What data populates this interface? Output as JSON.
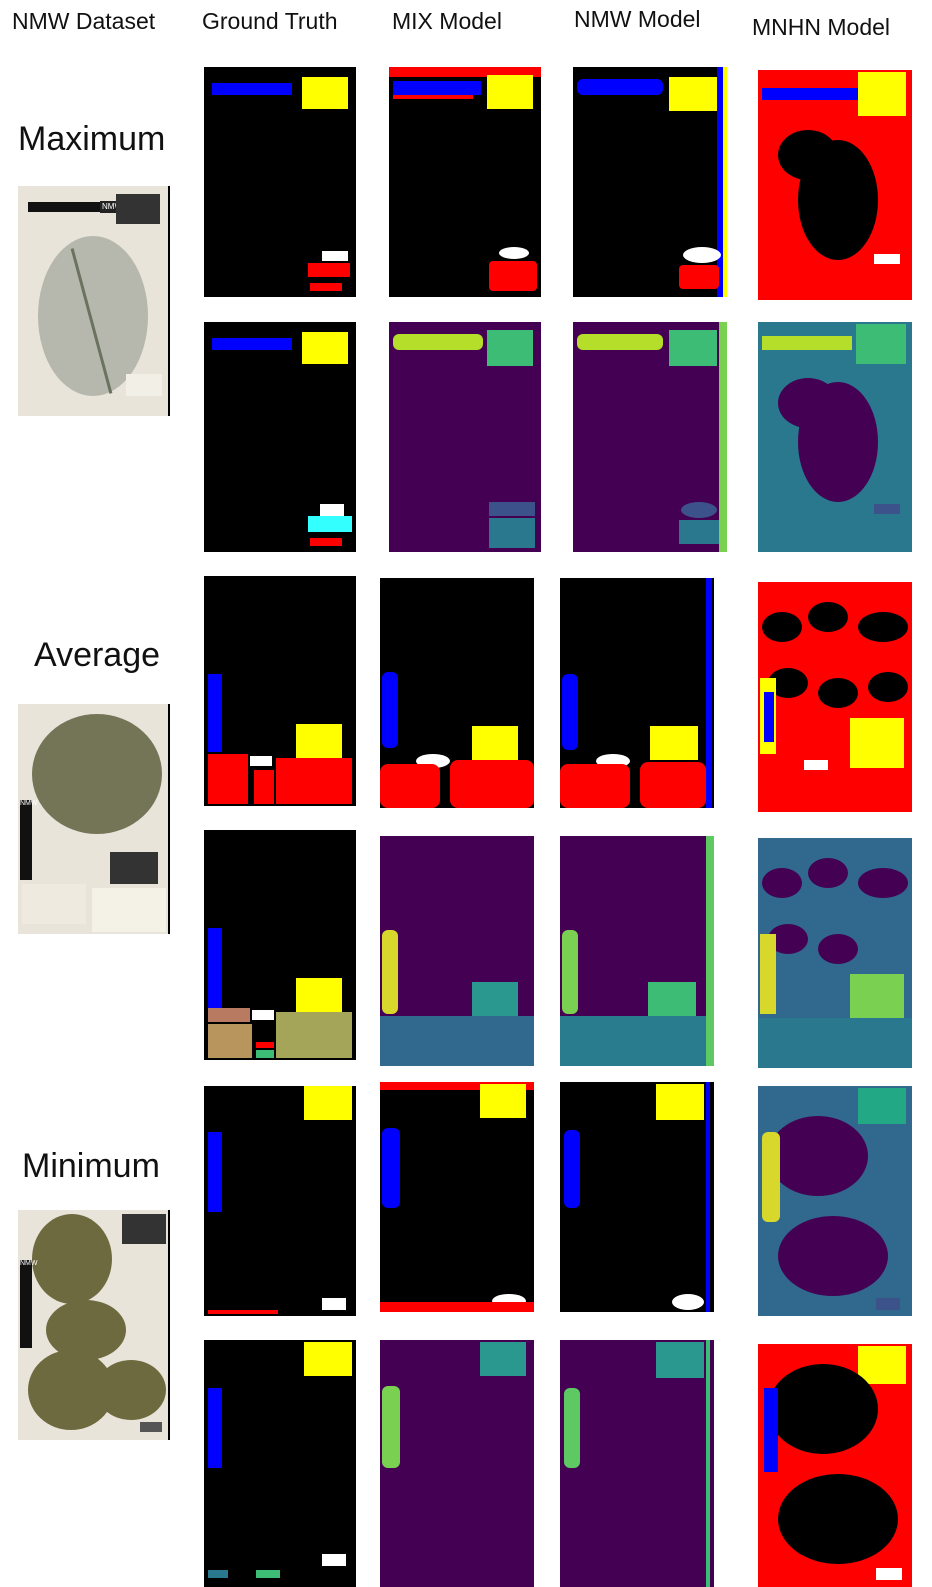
{
  "headers": {
    "dataset": "NMW Dataset",
    "ground_truth": "Ground Truth",
    "mix": "MIX Model",
    "nmw": "NMW Model",
    "mnhn": "MNHN Model"
  },
  "row_labels": {
    "maximum": "Maximum",
    "average": "Average",
    "minimum": "Minimum"
  },
  "thumbs": {
    "maximum": {
      "tag": "NMW"
    },
    "average": {
      "tag": "NMW"
    },
    "minimum": {
      "tag": "NMW"
    }
  },
  "colors": {
    "black": "#000000",
    "red": "#ff0000",
    "blue": "#0000ff",
    "yellow": "#ffff00",
    "white": "#ffffff",
    "cyan": "#33ffff",
    "purple": "#440154",
    "teal": "#2a788e",
    "green": "#3cbc75",
    "lime": "#b5de2b",
    "blueGrey": "#31688e",
    "midGreen": "#22a884"
  }
}
